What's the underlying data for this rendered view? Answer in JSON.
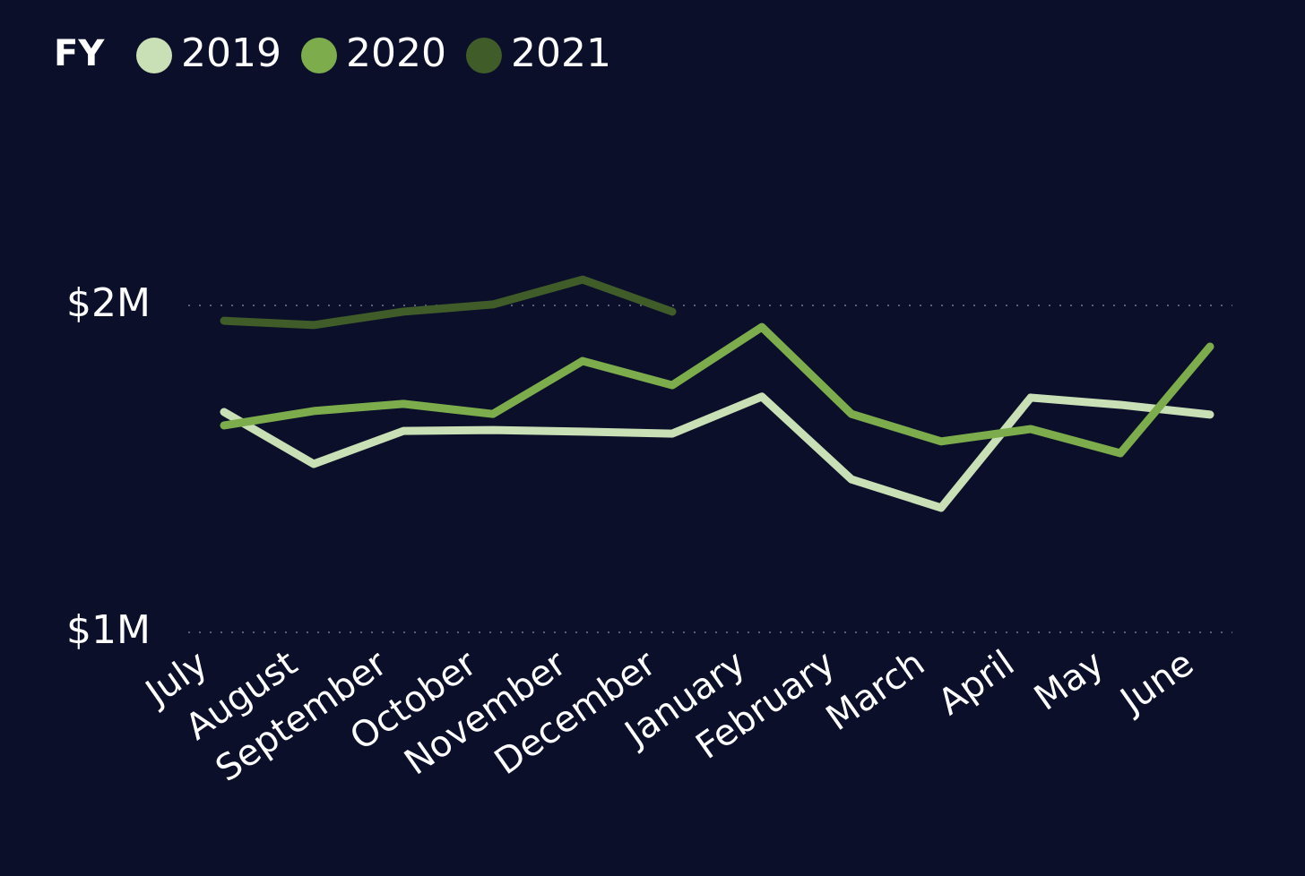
{
  "chart_data": {
    "type": "line",
    "legend_title": "FY",
    "categories": [
      "July",
      "August",
      "September",
      "October",
      "November",
      "December",
      "January",
      "February",
      "March",
      "April",
      "May",
      "June"
    ],
    "series": [
      {
        "name": "2019",
        "color": "#c9dfb5",
        "values": [
          1674000,
          1515000,
          1616000,
          1619000,
          1614000,
          1608000,
          1721000,
          1468000,
          1381000,
          1718000,
          1696000,
          1666000
        ]
      },
      {
        "name": "2020",
        "color": "#7cac4c",
        "values": [
          1633000,
          1677000,
          1699000,
          1668000,
          1830000,
          1756000,
          1934000,
          1668000,
          1584000,
          1622000,
          1548000,
          1874000
        ]
      },
      {
        "name": "2021",
        "color": "#3f5c29",
        "values": [
          1953000,
          1940000,
          1981000,
          2003000,
          2079000,
          1981000,
          null,
          null,
          null,
          null,
          null,
          null
        ]
      }
    ],
    "ylim": [
      1000000,
      2200000
    ],
    "yticks": [
      {
        "value": 1000000,
        "label": "$1M"
      },
      {
        "value": 2000000,
        "label": "$2M"
      }
    ],
    "grid": true
  }
}
